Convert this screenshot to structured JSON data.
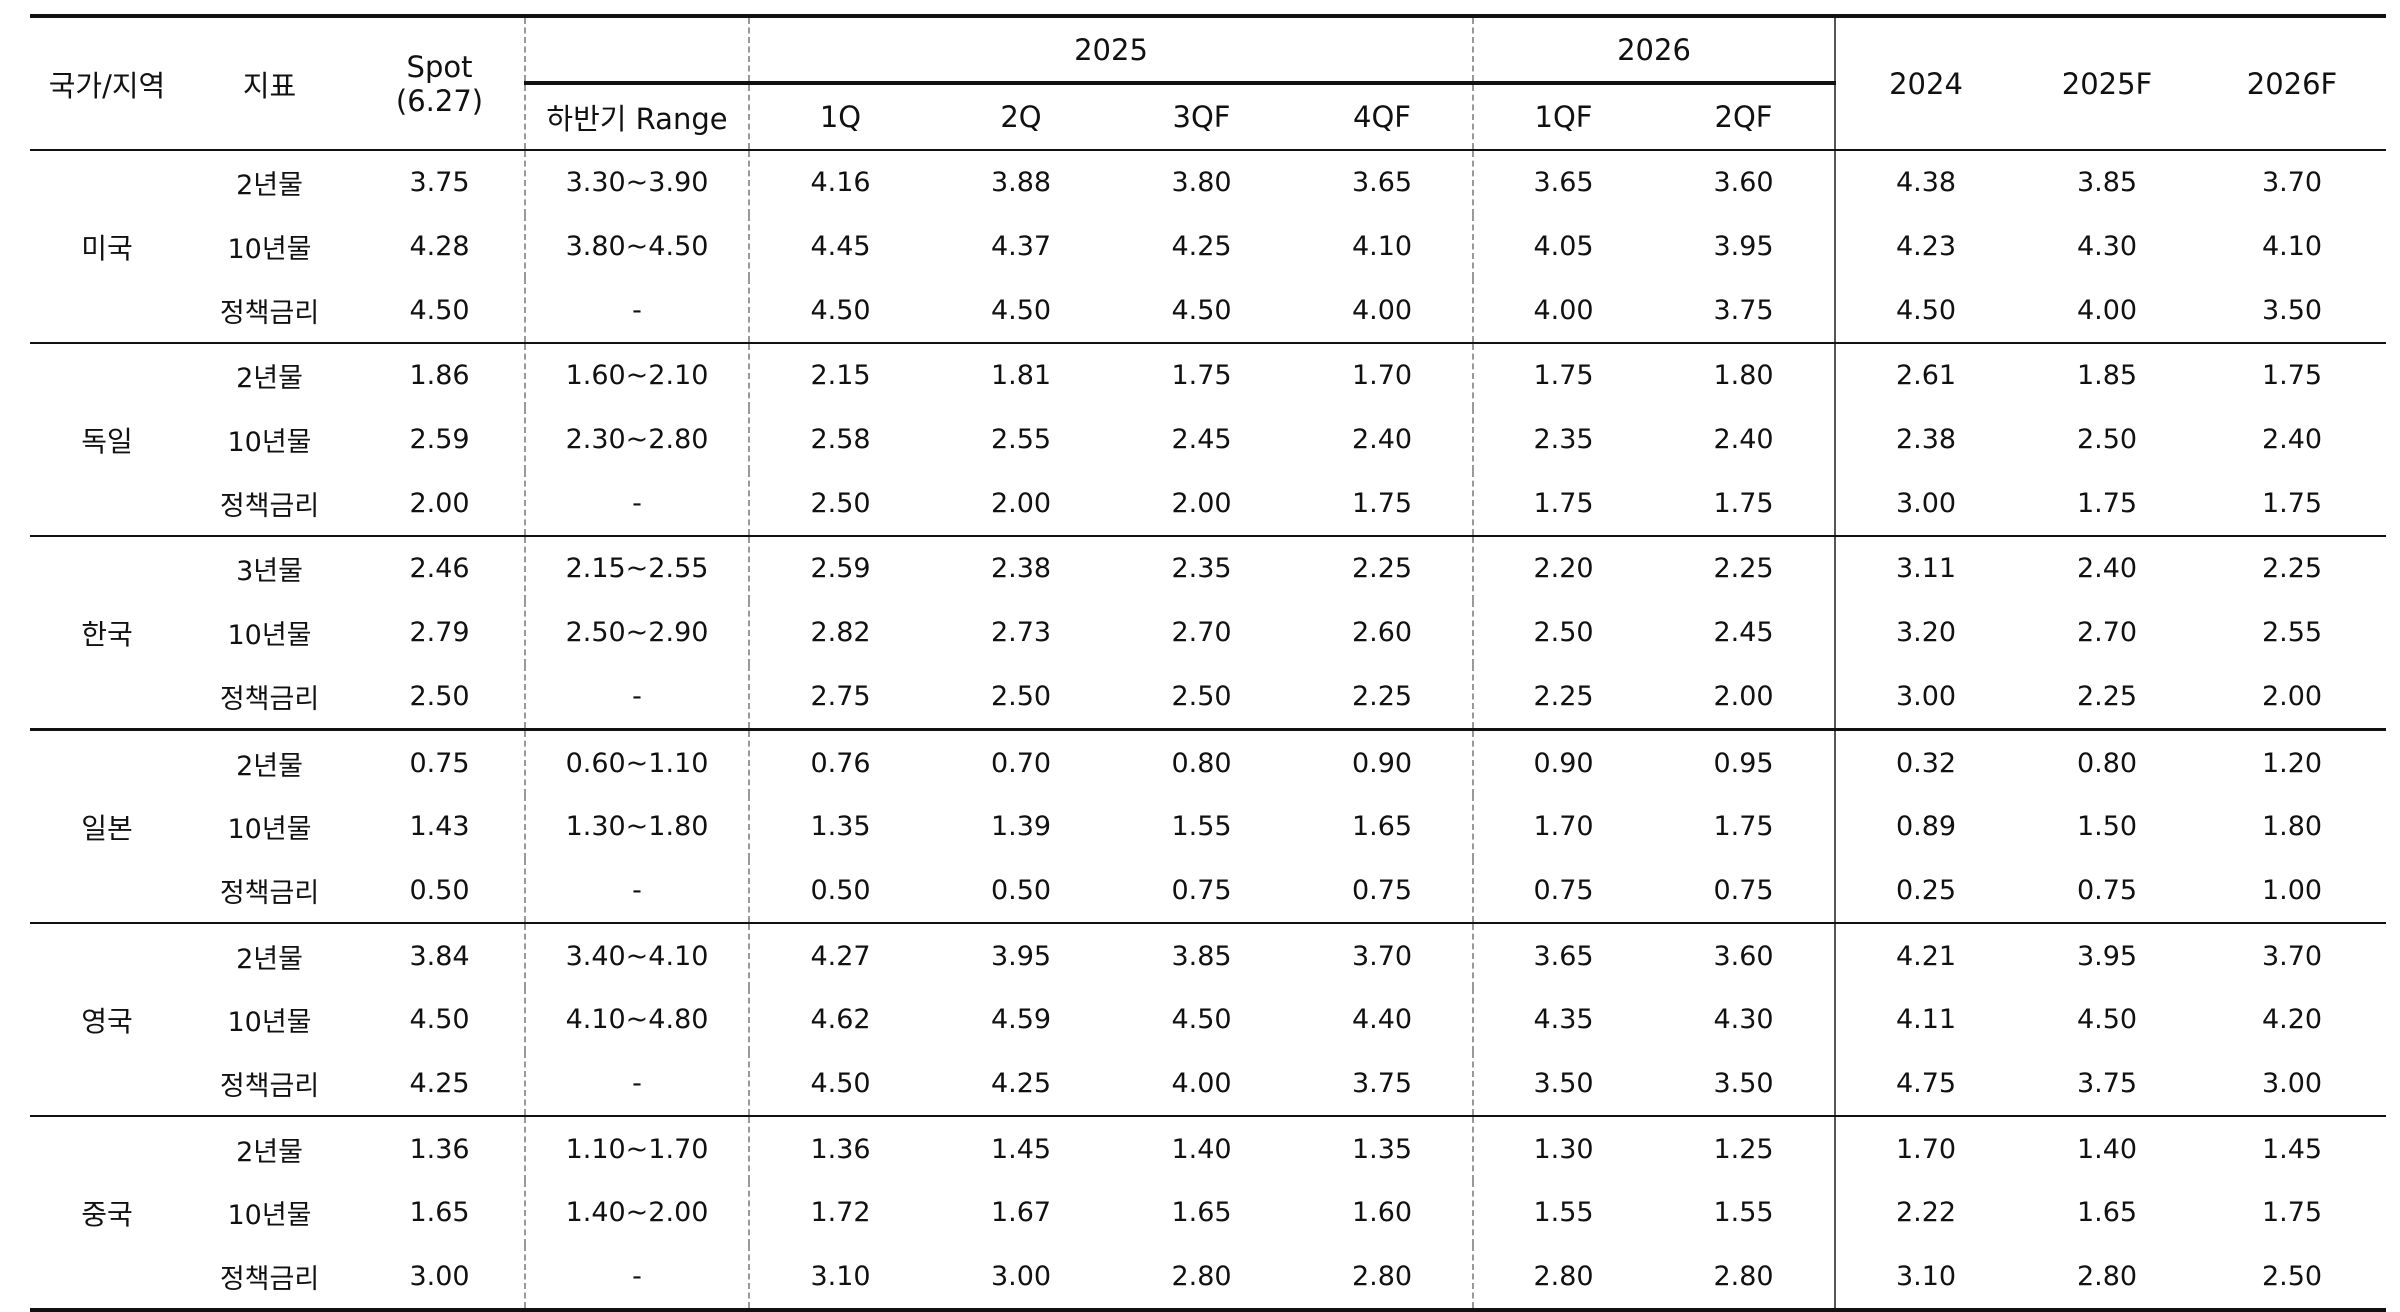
{
  "header": {
    "country_label": "국가/지역",
    "indicator_label": "지표",
    "spot_label_line1": "Spot",
    "spot_label_line2": "(6.27)",
    "range_label": "하반기 Range",
    "year_2025": "2025",
    "year_2026": "2026",
    "col_2025_1q": "1Q",
    "col_2025_2q": "2Q",
    "col_2025_3qf": "3QF",
    "col_2025_4qf": "4QF",
    "col_2026_1qf": "1QF",
    "col_2026_2qf": "2QF",
    "col_2024": "2024",
    "col_2025f": "2025F",
    "col_2026f": "2026F"
  },
  "groups": [
    {
      "country": "미국",
      "rows": [
        {
          "indicator": "2년물",
          "spot": "3.75",
          "range": "3.30~3.90",
          "q1": "4.16",
          "q2": "3.88",
          "q3": "3.80",
          "q4": "3.65",
          "n1": "3.65",
          "n2": "3.60",
          "y2024": "4.38",
          "y2025f": "3.85",
          "y2026f": "3.70"
        },
        {
          "indicator": "10년물",
          "spot": "4.28",
          "range": "3.80~4.50",
          "q1": "4.45",
          "q2": "4.37",
          "q3": "4.25",
          "q4": "4.10",
          "n1": "4.05",
          "n2": "3.95",
          "y2024": "4.23",
          "y2025f": "4.30",
          "y2026f": "4.10"
        },
        {
          "indicator": "정책금리",
          "spot": "4.50",
          "range": "-",
          "q1": "4.50",
          "q2": "4.50",
          "q3": "4.50",
          "q4": "4.00",
          "n1": "4.00",
          "n2": "3.75",
          "y2024": "4.50",
          "y2025f": "4.00",
          "y2026f": "3.50"
        }
      ]
    },
    {
      "country": "독일",
      "rows": [
        {
          "indicator": "2년물",
          "spot": "1.86",
          "range": "1.60~2.10",
          "q1": "2.15",
          "q2": "1.81",
          "q3": "1.75",
          "q4": "1.70",
          "n1": "1.75",
          "n2": "1.80",
          "y2024": "2.61",
          "y2025f": "1.85",
          "y2026f": "1.75"
        },
        {
          "indicator": "10년물",
          "spot": "2.59",
          "range": "2.30~2.80",
          "q1": "2.58",
          "q2": "2.55",
          "q3": "2.45",
          "q4": "2.40",
          "n1": "2.35",
          "n2": "2.40",
          "y2024": "2.38",
          "y2025f": "2.50",
          "y2026f": "2.40"
        },
        {
          "indicator": "정책금리",
          "spot": "2.00",
          "range": "-",
          "q1": "2.50",
          "q2": "2.00",
          "q3": "2.00",
          "q4": "1.75",
          "n1": "1.75",
          "n2": "1.75",
          "y2024": "3.00",
          "y2025f": "1.75",
          "y2026f": "1.75"
        }
      ]
    },
    {
      "country": "한국",
      "rows": [
        {
          "indicator": "3년물",
          "spot": "2.46",
          "range": "2.15~2.55",
          "q1": "2.59",
          "q2": "2.38",
          "q3": "2.35",
          "q4": "2.25",
          "n1": "2.20",
          "n2": "2.25",
          "y2024": "3.11",
          "y2025f": "2.40",
          "y2026f": "2.25"
        },
        {
          "indicator": "10년물",
          "spot": "2.79",
          "range": "2.50~2.90",
          "q1": "2.82",
          "q2": "2.73",
          "q3": "2.70",
          "q4": "2.60",
          "n1": "2.50",
          "n2": "2.45",
          "y2024": "3.20",
          "y2025f": "2.70",
          "y2026f": "2.55"
        },
        {
          "indicator": "정책금리",
          "spot": "2.50",
          "range": "-",
          "q1": "2.75",
          "q2": "2.50",
          "q3": "2.50",
          "q4": "2.25",
          "n1": "2.25",
          "n2": "2.00",
          "y2024": "3.00",
          "y2025f": "2.25",
          "y2026f": "2.00"
        }
      ]
    },
    {
      "country": "일본",
      "rows": [
        {
          "indicator": "2년물",
          "spot": "0.75",
          "range": "0.60~1.10",
          "q1": "0.76",
          "q2": "0.70",
          "q3": "0.80",
          "q4": "0.90",
          "n1": "0.90",
          "n2": "0.95",
          "y2024": "0.32",
          "y2025f": "0.80",
          "y2026f": "1.20"
        },
        {
          "indicator": "10년물",
          "spot": "1.43",
          "range": "1.30~1.80",
          "q1": "1.35",
          "q2": "1.39",
          "q3": "1.55",
          "q4": "1.65",
          "n1": "1.70",
          "n2": "1.75",
          "y2024": "0.89",
          "y2025f": "1.50",
          "y2026f": "1.80"
        },
        {
          "indicator": "정책금리",
          "spot": "0.50",
          "range": "-",
          "q1": "0.50",
          "q2": "0.50",
          "q3": "0.75",
          "q4": "0.75",
          "n1": "0.75",
          "n2": "0.75",
          "y2024": "0.25",
          "y2025f": "0.75",
          "y2026f": "1.00"
        }
      ]
    },
    {
      "country": "영국",
      "rows": [
        {
          "indicator": "2년물",
          "spot": "3.84",
          "range": "3.40~4.10",
          "q1": "4.27",
          "q2": "3.95",
          "q3": "3.85",
          "q4": "3.70",
          "n1": "3.65",
          "n2": "3.60",
          "y2024": "4.21",
          "y2025f": "3.95",
          "y2026f": "3.70"
        },
        {
          "indicator": "10년물",
          "spot": "4.50",
          "range": "4.10~4.80",
          "q1": "4.62",
          "q2": "4.59",
          "q3": "4.50",
          "q4": "4.40",
          "n1": "4.35",
          "n2": "4.30",
          "y2024": "4.11",
          "y2025f": "4.50",
          "y2026f": "4.20"
        },
        {
          "indicator": "정책금리",
          "spot": "4.25",
          "range": "-",
          "q1": "4.50",
          "q2": "4.25",
          "q3": "4.00",
          "q4": "3.75",
          "n1": "3.50",
          "n2": "3.50",
          "y2024": "4.75",
          "y2025f": "3.75",
          "y2026f": "3.00"
        }
      ]
    },
    {
      "country": "중국",
      "rows": [
        {
          "indicator": "2년물",
          "spot": "1.36",
          "range": "1.10~1.70",
          "q1": "1.36",
          "q2": "1.45",
          "q3": "1.40",
          "q4": "1.35",
          "n1": "1.30",
          "n2": "1.25",
          "y2024": "1.70",
          "y2025f": "1.40",
          "y2026f": "1.45"
        },
        {
          "indicator": "10년물",
          "spot": "1.65",
          "range": "1.40~2.00",
          "q1": "1.72",
          "q2": "1.67",
          "q3": "1.65",
          "q4": "1.60",
          "n1": "1.55",
          "n2": "1.55",
          "y2024": "2.22",
          "y2025f": "1.65",
          "y2026f": "1.75"
        },
        {
          "indicator": "정책금리",
          "spot": "3.00",
          "range": "-",
          "q1": "3.10",
          "q2": "3.00",
          "q3": "2.80",
          "q4": "2.80",
          "n1": "2.80",
          "n2": "2.80",
          "y2024": "3.10",
          "y2025f": "2.80",
          "y2026f": "2.50"
        }
      ]
    }
  ]
}
